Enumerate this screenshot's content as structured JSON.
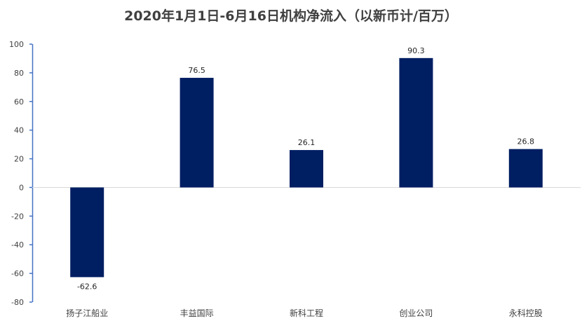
{
  "chart_data": {
    "type": "bar",
    "title": "2020年1月1日-6月16日机构净流入（以新币计/百万）",
    "categories": [
      "扬子江船业",
      "丰益国际",
      "新科工程",
      "创业公司",
      "永科控股"
    ],
    "values": [
      -62.6,
      76.5,
      26.1,
      90.3,
      26.8
    ],
    "data_labels": [
      "-62.6",
      "76.5",
      "26.1",
      "90.3",
      "26.8"
    ],
    "xlabel": "",
    "ylabel": "",
    "ylim": [
      -80,
      100
    ],
    "yticks": [
      "100",
      "80",
      "60",
      "40",
      "20",
      "0",
      "-20",
      "-40",
      "-60",
      "-80"
    ],
    "grid": false,
    "legend": "none",
    "colors": {
      "bar": "#001E62",
      "axis": "#4472C4",
      "zero_line": "#D9D9D9"
    }
  }
}
